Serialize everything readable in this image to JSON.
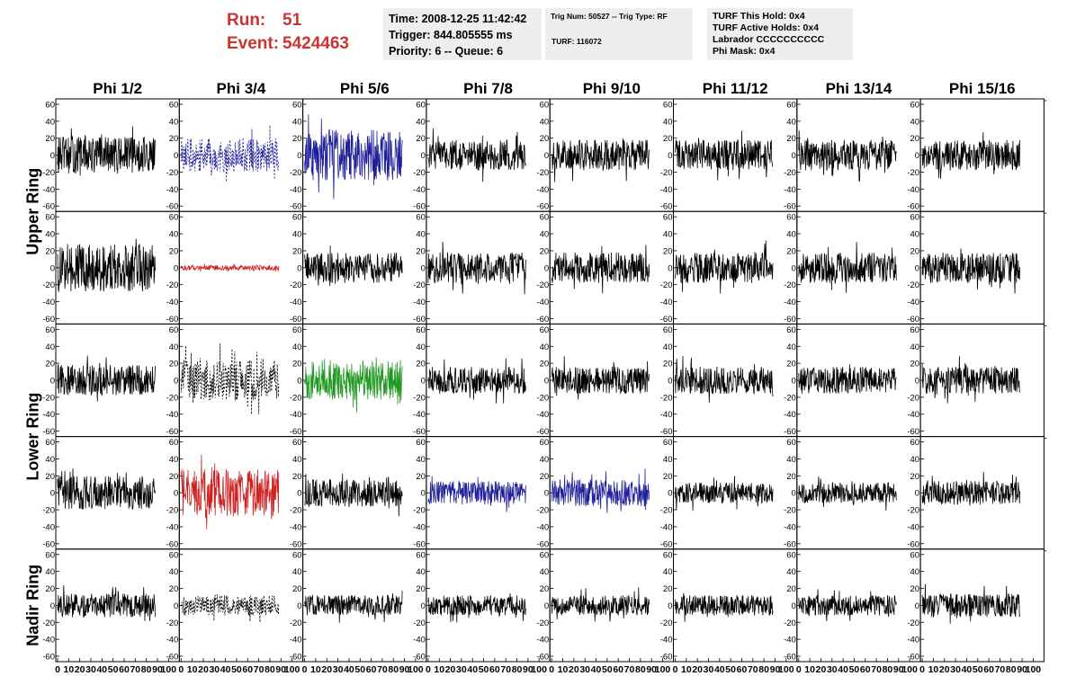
{
  "header": {
    "run_label": "Run:",
    "run_value": "51",
    "event_label": "Event:",
    "event_value": "5424463"
  },
  "info_box_1": {
    "time": "Time: 2008-12-25 11:42:42",
    "trigger": "Trigger: 844.805555 ms",
    "priority": "Priority: 6 -- Queue: 6"
  },
  "info_box_2": {
    "trig": "Trig Num: 50527 -- Trig Type: RF",
    "turf": "TURF: 116072"
  },
  "info_box_3": {
    "this_hold": "TURF This Hold: 0x4",
    "active_holds": "TURF Active Holds: 0x4",
    "labrador": "Labrador CCCCCCCCCC",
    "phi_mask": "Phi Mask: 0x4"
  },
  "colors": {
    "header_red": "#cc3333",
    "trace_black": "#000000",
    "trace_blue": "#1f1f99",
    "trace_red": "#cc2222",
    "trace_green": "#229922",
    "info_bg": "#eeeeee"
  },
  "chart_data": {
    "type": "line",
    "description_note": "8 x 5 grid of waveform panels; each panel is a noise-like voltage trace vs. sample index",
    "columns": [
      "Phi 1/2",
      "Phi 3/4",
      "Phi 5/6",
      "Phi 7/8",
      "Phi 9/10",
      "Phi 11/12",
      "Phi 13/14",
      "Phi 15/16"
    ],
    "row_labels": [
      "Upper Ring",
      "Lower Ring",
      "Nadir Ring"
    ],
    "ylim": [
      -60,
      60
    ],
    "yticks": [
      -60,
      -40,
      -20,
      0,
      20,
      40,
      60
    ],
    "xlim": [
      0,
      100
    ],
    "xticks": [
      0,
      10,
      20,
      30,
      40,
      50,
      60,
      70,
      80,
      90,
      100
    ],
    "xtick_labels": [
      "0",
      "10",
      "20",
      "30",
      "40",
      "50",
      "60",
      "70",
      "80",
      "90",
      "100"
    ],
    "grid": false,
    "panels": [
      {
        "row": 0,
        "col": 0,
        "color": "black",
        "dashed": false,
        "amplitude": 22
      },
      {
        "row": 0,
        "col": 1,
        "color": "blue",
        "dashed": true,
        "amplitude": 20
      },
      {
        "row": 0,
        "col": 2,
        "color": "blue",
        "dashed": false,
        "amplitude": 30
      },
      {
        "row": 0,
        "col": 3,
        "color": "black",
        "dashed": false,
        "amplitude": 18
      },
      {
        "row": 0,
        "col": 4,
        "color": "black",
        "dashed": false,
        "amplitude": 18
      },
      {
        "row": 0,
        "col": 5,
        "color": "black",
        "dashed": false,
        "amplitude": 18
      },
      {
        "row": 0,
        "col": 6,
        "color": "black",
        "dashed": false,
        "amplitude": 18
      },
      {
        "row": 0,
        "col": 7,
        "color": "black",
        "dashed": false,
        "amplitude": 18
      },
      {
        "row": 1,
        "col": 0,
        "color": "black",
        "dashed": false,
        "amplitude": 28
      },
      {
        "row": 1,
        "col": 1,
        "color": "red",
        "dashed": false,
        "amplitude": 3
      },
      {
        "row": 1,
        "col": 2,
        "color": "black",
        "dashed": false,
        "amplitude": 18
      },
      {
        "row": 1,
        "col": 3,
        "color": "black",
        "dashed": false,
        "amplitude": 18
      },
      {
        "row": 1,
        "col": 4,
        "color": "black",
        "dashed": false,
        "amplitude": 18
      },
      {
        "row": 1,
        "col": 5,
        "color": "black",
        "dashed": false,
        "amplitude": 18
      },
      {
        "row": 1,
        "col": 6,
        "color": "black",
        "dashed": false,
        "amplitude": 18
      },
      {
        "row": 1,
        "col": 7,
        "color": "black",
        "dashed": false,
        "amplitude": 18
      },
      {
        "row": 2,
        "col": 0,
        "color": "black",
        "dashed": false,
        "amplitude": 18
      },
      {
        "row": 2,
        "col": 1,
        "color": "black",
        "dashed": true,
        "amplitude": 24
      },
      {
        "row": 2,
        "col": 2,
        "color": "green",
        "dashed": false,
        "amplitude": 24
      },
      {
        "row": 2,
        "col": 3,
        "color": "black",
        "dashed": false,
        "amplitude": 16
      },
      {
        "row": 2,
        "col": 4,
        "color": "black",
        "dashed": false,
        "amplitude": 16
      },
      {
        "row": 2,
        "col": 5,
        "color": "black",
        "dashed": false,
        "amplitude": 16
      },
      {
        "row": 2,
        "col": 6,
        "color": "black",
        "dashed": false,
        "amplitude": 16
      },
      {
        "row": 2,
        "col": 7,
        "color": "black",
        "dashed": false,
        "amplitude": 16
      },
      {
        "row": 3,
        "col": 0,
        "color": "black",
        "dashed": false,
        "amplitude": 20
      },
      {
        "row": 3,
        "col": 1,
        "color": "red",
        "dashed": false,
        "amplitude": 28
      },
      {
        "row": 3,
        "col": 2,
        "color": "black",
        "dashed": false,
        "amplitude": 16
      },
      {
        "row": 3,
        "col": 3,
        "color": "blue",
        "dashed": false,
        "amplitude": 14
      },
      {
        "row": 3,
        "col": 4,
        "color": "blue",
        "dashed": false,
        "amplitude": 16
      },
      {
        "row": 3,
        "col": 5,
        "color": "black",
        "dashed": false,
        "amplitude": 12
      },
      {
        "row": 3,
        "col": 6,
        "color": "black",
        "dashed": false,
        "amplitude": 12
      },
      {
        "row": 3,
        "col": 7,
        "color": "black",
        "dashed": false,
        "amplitude": 14
      },
      {
        "row": 4,
        "col": 0,
        "color": "black",
        "dashed": false,
        "amplitude": 14
      },
      {
        "row": 4,
        "col": 1,
        "color": "black",
        "dashed": true,
        "amplitude": 12
      },
      {
        "row": 4,
        "col": 2,
        "color": "black",
        "dashed": false,
        "amplitude": 12
      },
      {
        "row": 4,
        "col": 3,
        "color": "black",
        "dashed": false,
        "amplitude": 12
      },
      {
        "row": 4,
        "col": 4,
        "color": "black",
        "dashed": false,
        "amplitude": 12
      },
      {
        "row": 4,
        "col": 5,
        "color": "black",
        "dashed": false,
        "amplitude": 12
      },
      {
        "row": 4,
        "col": 6,
        "color": "black",
        "dashed": false,
        "amplitude": 12
      },
      {
        "row": 4,
        "col": 7,
        "color": "black",
        "dashed": false,
        "amplitude": 14
      }
    ]
  }
}
